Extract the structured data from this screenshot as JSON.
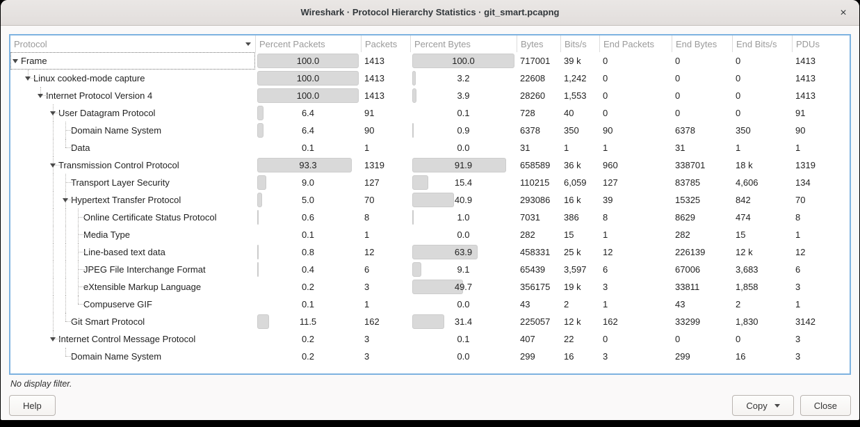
{
  "window": {
    "title": "Wireshark · Protocol Hierarchy Statistics · git_smart.pcapng",
    "close_glyph": "×"
  },
  "table": {
    "columns": [
      {
        "key": "protocol",
        "label": "Protocol",
        "type": "tree",
        "sorted": "desc"
      },
      {
        "key": "percent_packets",
        "label": "Percent Packets",
        "type": "percent"
      },
      {
        "key": "packets",
        "label": "Packets",
        "type": "value"
      },
      {
        "key": "percent_bytes",
        "label": "Percent Bytes",
        "type": "percent"
      },
      {
        "key": "bytes",
        "label": "Bytes",
        "type": "value"
      },
      {
        "key": "bits_s",
        "label": "Bits/s",
        "type": "value"
      },
      {
        "key": "end_packets",
        "label": "End Packets",
        "type": "value"
      },
      {
        "key": "end_bytes",
        "label": "End Bytes",
        "type": "value"
      },
      {
        "key": "end_bits_s",
        "label": "End Bits/s",
        "type": "value"
      },
      {
        "key": "pdus",
        "label": "PDUs",
        "type": "value"
      }
    ],
    "rows": [
      {
        "protocol": "Frame",
        "level": 0,
        "expandable": true,
        "focused": true,
        "percent_packets": "100.0",
        "packets": "1413",
        "percent_bytes": "100.0",
        "bytes": "717001",
        "bits_s": "39 k",
        "end_packets": "0",
        "end_bytes": "0",
        "end_bits_s": "0",
        "pdus": "1413"
      },
      {
        "protocol": "Linux cooked-mode capture",
        "level": 1,
        "expandable": true,
        "percent_packets": "100.0",
        "packets": "1413",
        "percent_bytes": "3.2",
        "bytes": "22608",
        "bits_s": "1,242",
        "end_packets": "0",
        "end_bytes": "0",
        "end_bits_s": "0",
        "pdus": "1413"
      },
      {
        "protocol": "Internet Protocol Version 4",
        "level": 2,
        "expandable": true,
        "percent_packets": "100.0",
        "packets": "1413",
        "percent_bytes": "3.9",
        "bytes": "28260",
        "bits_s": "1,553",
        "end_packets": "0",
        "end_bytes": "0",
        "end_bits_s": "0",
        "pdus": "1413"
      },
      {
        "protocol": "User Datagram Protocol",
        "level": 3,
        "expandable": true,
        "percent_packets": "6.4",
        "packets": "91",
        "percent_bytes": "0.1",
        "bytes": "728",
        "bits_s": "40",
        "end_packets": "0",
        "end_bytes": "0",
        "end_bits_s": "0",
        "pdus": "91"
      },
      {
        "protocol": "Domain Name System",
        "level": 4,
        "expandable": false,
        "percent_packets": "6.4",
        "packets": "90",
        "percent_bytes": "0.9",
        "bytes": "6378",
        "bits_s": "350",
        "end_packets": "90",
        "end_bytes": "6378",
        "end_bits_s": "350",
        "pdus": "90"
      },
      {
        "protocol": "Data",
        "level": 4,
        "expandable": false,
        "percent_packets": "0.1",
        "packets": "1",
        "percent_bytes": "0.0",
        "bytes": "31",
        "bits_s": "1",
        "end_packets": "1",
        "end_bytes": "31",
        "end_bits_s": "1",
        "pdus": "1"
      },
      {
        "protocol": "Transmission Control Protocol",
        "level": 3,
        "expandable": true,
        "percent_packets": "93.3",
        "packets": "1319",
        "percent_bytes": "91.9",
        "bytes": "658589",
        "bits_s": "36 k",
        "end_packets": "960",
        "end_bytes": "338701",
        "end_bits_s": "18 k",
        "pdus": "1319"
      },
      {
        "protocol": "Transport Layer Security",
        "level": 4,
        "expandable": false,
        "percent_packets": "9.0",
        "packets": "127",
        "percent_bytes": "15.4",
        "bytes": "110215",
        "bits_s": "6,059",
        "end_packets": "127",
        "end_bytes": "83785",
        "end_bits_s": "4,606",
        "pdus": "134"
      },
      {
        "protocol": "Hypertext Transfer Protocol",
        "level": 4,
        "expandable": true,
        "percent_packets": "5.0",
        "packets": "70",
        "percent_bytes": "40.9",
        "bytes": "293086",
        "bits_s": "16 k",
        "end_packets": "39",
        "end_bytes": "15325",
        "end_bits_s": "842",
        "pdus": "70"
      },
      {
        "protocol": "Online Certificate Status Protocol",
        "level": 5,
        "expandable": false,
        "percent_packets": "0.6",
        "packets": "8",
        "percent_bytes": "1.0",
        "bytes": "7031",
        "bits_s": "386",
        "end_packets": "8",
        "end_bytes": "8629",
        "end_bits_s": "474",
        "pdus": "8"
      },
      {
        "protocol": "Media Type",
        "level": 5,
        "expandable": false,
        "percent_packets": "0.1",
        "packets": "1",
        "percent_bytes": "0.0",
        "bytes": "282",
        "bits_s": "15",
        "end_packets": "1",
        "end_bytes": "282",
        "end_bits_s": "15",
        "pdus": "1"
      },
      {
        "protocol": "Line-based text data",
        "level": 5,
        "expandable": false,
        "percent_packets": "0.8",
        "packets": "12",
        "percent_bytes": "63.9",
        "bytes": "458331",
        "bits_s": "25 k",
        "end_packets": "12",
        "end_bytes": "226139",
        "end_bits_s": "12 k",
        "pdus": "12"
      },
      {
        "protocol": "JPEG File Interchange Format",
        "level": 5,
        "expandable": false,
        "percent_packets": "0.4",
        "packets": "6",
        "percent_bytes": "9.1",
        "bytes": "65439",
        "bits_s": "3,597",
        "end_packets": "6",
        "end_bytes": "67006",
        "end_bits_s": "3,683",
        "pdus": "6"
      },
      {
        "protocol": "eXtensible Markup Language",
        "level": 5,
        "expandable": false,
        "percent_packets": "0.2",
        "packets": "3",
        "percent_bytes": "49.7",
        "bytes": "356175",
        "bits_s": "19 k",
        "end_packets": "3",
        "end_bytes": "33811",
        "end_bits_s": "1,858",
        "pdus": "3"
      },
      {
        "protocol": "Compuserve GIF",
        "level": 5,
        "expandable": false,
        "percent_packets": "0.1",
        "packets": "1",
        "percent_bytes": "0.0",
        "bytes": "43",
        "bits_s": "2",
        "end_packets": "1",
        "end_bytes": "43",
        "end_bits_s": "2",
        "pdus": "1"
      },
      {
        "protocol": "Git Smart Protocol",
        "level": 4,
        "expandable": false,
        "percent_packets": "11.5",
        "packets": "162",
        "percent_bytes": "31.4",
        "bytes": "225057",
        "bits_s": "12 k",
        "end_packets": "162",
        "end_bytes": "33299",
        "end_bits_s": "1,830",
        "pdus": "3142"
      },
      {
        "protocol": "Internet Control Message Protocol",
        "level": 3,
        "expandable": true,
        "percent_packets": "0.2",
        "packets": "3",
        "percent_bytes": "0.1",
        "bytes": "407",
        "bits_s": "22",
        "end_packets": "0",
        "end_bytes": "0",
        "end_bits_s": "0",
        "pdus": "3"
      },
      {
        "protocol": "Domain Name System",
        "level": 4,
        "expandable": false,
        "percent_packets": "0.2",
        "packets": "3",
        "percent_bytes": "0.0",
        "bytes": "299",
        "bits_s": "16",
        "end_packets": "3",
        "end_bytes": "299",
        "end_bits_s": "16",
        "pdus": "3"
      }
    ]
  },
  "footer": {
    "status": "No display filter.",
    "help_label": "Help",
    "copy_label": "Copy",
    "close_label": "Close"
  },
  "colors": {
    "table_focus_border": "#7db2e0",
    "percent_bar": "#d9d9d9",
    "titlebar_bg": "#e6e2e0",
    "header_text": "#9a9a9a"
  }
}
